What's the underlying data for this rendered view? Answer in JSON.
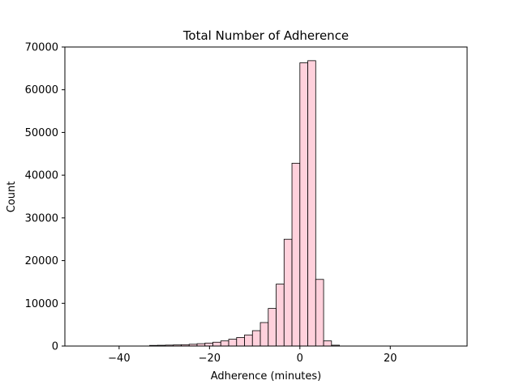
{
  "chart_data": {
    "type": "bar",
    "title": "Total Number of Adherence",
    "xlabel": "Adherence (minutes)",
    "ylabel": "Count",
    "xlim": [
      -52,
      37
    ],
    "ylim": [
      0,
      70000
    ],
    "xticks": [
      -40,
      -20,
      0,
      20
    ],
    "yticks": [
      0,
      10000,
      20000,
      30000,
      40000,
      50000,
      60000,
      70000
    ],
    "grid": false,
    "bar_color": "#ffd1dc",
    "edge_color": "#000000",
    "bin_width": 1.75,
    "bins": [
      {
        "x0": -33.25,
        "value": 150
      },
      {
        "x0": -31.5,
        "value": 180
      },
      {
        "x0": -29.75,
        "value": 220
      },
      {
        "x0": -28.0,
        "value": 260
      },
      {
        "x0": -26.25,
        "value": 320
      },
      {
        "x0": -24.5,
        "value": 420
      },
      {
        "x0": -22.75,
        "value": 550
      },
      {
        "x0": -21.0,
        "value": 700
      },
      {
        "x0": -19.25,
        "value": 900
      },
      {
        "x0": -17.5,
        "value": 1200
      },
      {
        "x0": -15.75,
        "value": 1600
      },
      {
        "x0": -14.0,
        "value": 2000
      },
      {
        "x0": -12.25,
        "value": 2600
      },
      {
        "x0": -10.5,
        "value": 3600
      },
      {
        "x0": -8.75,
        "value": 5500
      },
      {
        "x0": -7.0,
        "value": 8800
      },
      {
        "x0": -5.25,
        "value": 14500
      },
      {
        "x0": -3.5,
        "value": 25000
      },
      {
        "x0": -1.75,
        "value": 42800
      },
      {
        "x0": 0.0,
        "value": 66300
      },
      {
        "x0": 1.75,
        "value": 66800
      },
      {
        "x0": 3.5,
        "value": 15600
      },
      {
        "x0": 5.25,
        "value": 1200
      },
      {
        "x0": 7.0,
        "value": 200
      }
    ]
  }
}
